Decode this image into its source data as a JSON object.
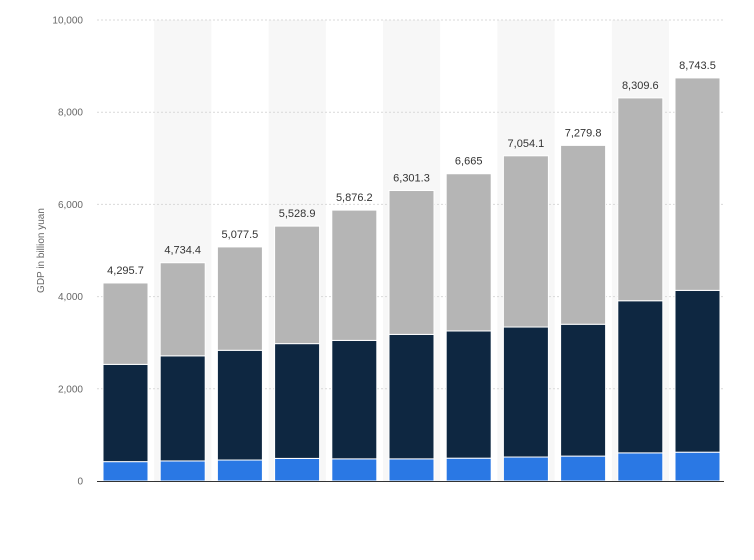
{
  "chart_data": {
    "type": "bar",
    "stacked": true,
    "ylabel": "GDP in billion yuan",
    "ylim": [
      0,
      10000
    ],
    "yticks": [
      "0",
      "2,000",
      "4,000",
      "6,000",
      "8,000",
      "10,000"
    ],
    "ytick_values": [
      0,
      2000,
      4000,
      6000,
      8000,
      10000
    ],
    "grid": true,
    "legend": "none",
    "series": [
      {
        "color": "#2a78e4",
        "values": [
          420,
          435,
          455,
          490,
          480,
          480,
          495,
          520,
          540,
          610,
          625
        ]
      },
      {
        "color": "#0e2741",
        "values": [
          2110,
          2280,
          2380,
          2490,
          2570,
          2700,
          2760,
          2820,
          2860,
          3300,
          3510
        ]
      },
      {
        "color": "#b5b5b5",
        "values": [
          1765.7,
          2019.4,
          2242.5,
          2548.9,
          2826.2,
          3121.3,
          3410,
          3714.1,
          3879.8,
          4399.6,
          4608.5
        ]
      }
    ],
    "totals": [
      4295.7,
      4734.4,
      5077.5,
      5528.9,
      5876.2,
      6301.3,
      6665,
      7054.1,
      7279.8,
      8309.6,
      8743.5
    ],
    "total_labels": [
      "4,295.7",
      "4,734.4",
      "5,077.5",
      "5,528.9",
      "5,876.2",
      "6,301.3",
      "6,665",
      "7,054.1",
      "7,279.8",
      "8,309.6",
      "8,743.5"
    ],
    "colors": {
      "band": "#f7f7f7",
      "grid": "#d9d9d9",
      "axis": "#333333"
    }
  }
}
